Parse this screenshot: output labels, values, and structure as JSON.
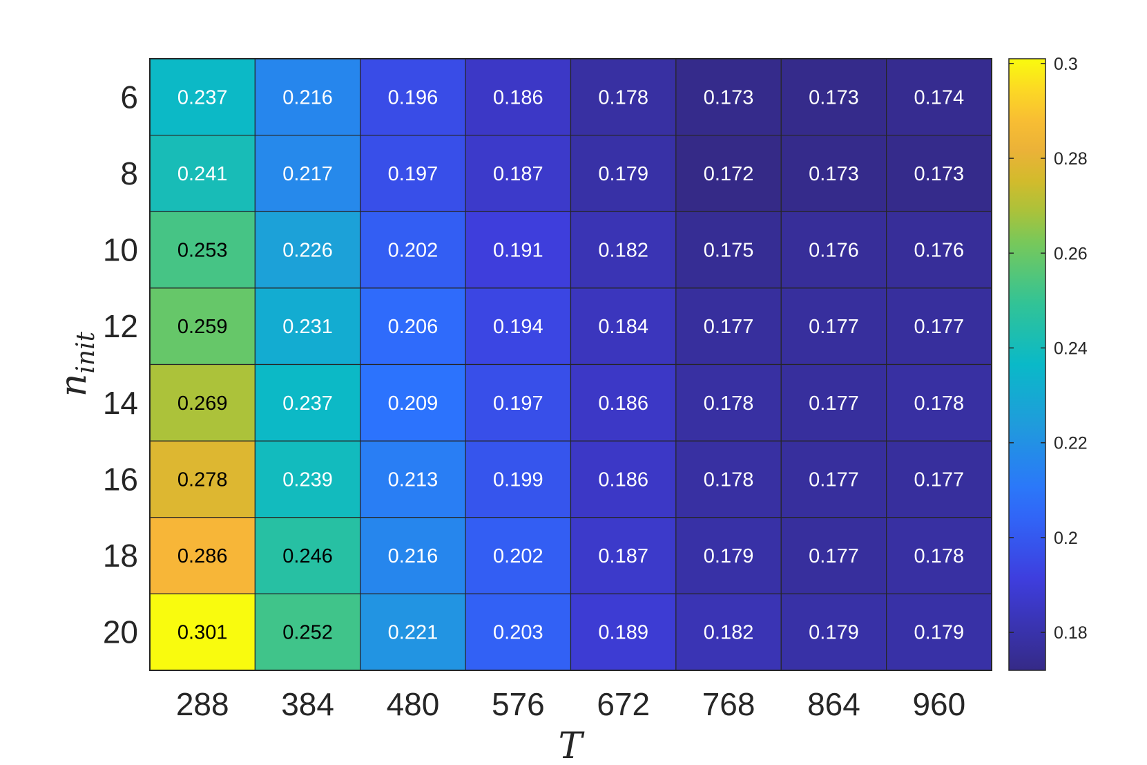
{
  "chart_data": {
    "type": "heatmap",
    "xlabel": "T",
    "ylabel_main": "n",
    "ylabel_sub": "init",
    "x": [
      "288",
      "384",
      "480",
      "576",
      "672",
      "768",
      "864",
      "960"
    ],
    "y": [
      "6",
      "8",
      "10",
      "12",
      "14",
      "16",
      "18",
      "20"
    ],
    "values": [
      [
        0.237,
        0.216,
        0.196,
        0.186,
        0.178,
        0.173,
        0.173,
        0.174
      ],
      [
        0.241,
        0.217,
        0.197,
        0.187,
        0.179,
        0.172,
        0.173,
        0.173
      ],
      [
        0.253,
        0.226,
        0.202,
        0.191,
        0.182,
        0.175,
        0.176,
        0.176
      ],
      [
        0.259,
        0.231,
        0.206,
        0.194,
        0.184,
        0.177,
        0.177,
        0.177
      ],
      [
        0.269,
        0.237,
        0.209,
        0.197,
        0.186,
        0.178,
        0.177,
        0.178
      ],
      [
        0.278,
        0.239,
        0.213,
        0.199,
        0.186,
        0.178,
        0.177,
        0.177
      ],
      [
        0.286,
        0.246,
        0.216,
        0.202,
        0.187,
        0.179,
        0.177,
        0.178
      ],
      [
        0.301,
        0.252,
        0.221,
        0.203,
        0.189,
        0.182,
        0.179,
        0.179
      ]
    ],
    "colorbar": {
      "ticks": [
        {
          "value": 0.18,
          "label": "0.18"
        },
        {
          "value": 0.2,
          "label": "0.2"
        },
        {
          "value": 0.22,
          "label": "0.22"
        },
        {
          "value": 0.24,
          "label": "0.24"
        },
        {
          "value": 0.26,
          "label": "0.26"
        },
        {
          "value": 0.28,
          "label": "0.28"
        },
        {
          "value": 0.3,
          "label": "0.3"
        }
      ],
      "range": [
        0.172,
        0.301
      ],
      "colormap": "parula"
    },
    "label_colors": {
      "dark": "#000000",
      "light": "#ffffff"
    }
  }
}
